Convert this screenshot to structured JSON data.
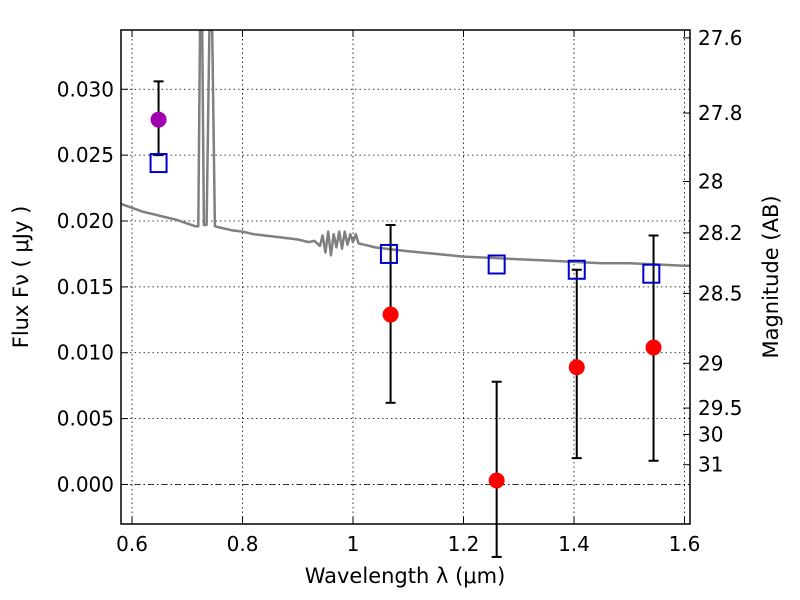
{
  "chart_data": {
    "type": "scatter",
    "xlabel": "Wavelength  λ (μm)",
    "ylabel": "Flux  Fν  ( μJy )",
    "y2label": "Magnitude (AB)",
    "xlim": [
      0.58,
      1.61
    ],
    "ylim": [
      -0.003,
      0.0345
    ],
    "grid": true,
    "x_ticks": [
      {
        "value": 0.6,
        "label": "0.6"
      },
      {
        "value": 0.8,
        "label": "0.8"
      },
      {
        "value": 1.0,
        "label": "1"
      },
      {
        "value": 1.2,
        "label": "1.2"
      },
      {
        "value": 1.4,
        "label": "1.4"
      },
      {
        "value": 1.6,
        "label": "1.6"
      }
    ],
    "y_ticks": [
      {
        "value": 0.0,
        "label": "0.000"
      },
      {
        "value": 0.005,
        "label": "0.005"
      },
      {
        "value": 0.01,
        "label": "0.010"
      },
      {
        "value": 0.015,
        "label": "0.015"
      },
      {
        "value": 0.02,
        "label": "0.020"
      },
      {
        "value": 0.025,
        "label": "0.025"
      },
      {
        "value": 0.03,
        "label": "0.030"
      }
    ],
    "y2_ticks": [
      {
        "flux": 0.0339,
        "label": "27.6"
      },
      {
        "flux": 0.0282,
        "label": "27.8"
      },
      {
        "flux": 0.023,
        "label": "28"
      },
      {
        "flux": 0.0191,
        "label": "28.2"
      },
      {
        "flux": 0.0145,
        "label": "28.5"
      },
      {
        "flux": 0.0092,
        "label": "29"
      },
      {
        "flux": 0.0058,
        "label": "29.5"
      },
      {
        "flux": 0.0038,
        "label": "30"
      },
      {
        "flux": 0.0015,
        "label": "31"
      }
    ],
    "zero_line": 0.0,
    "series": [
      {
        "type": "line",
        "color": "#808080",
        "x": [
          0.58,
          0.6,
          0.62,
          0.64,
          0.66,
          0.68,
          0.7,
          0.715,
          0.72,
          0.723,
          0.727,
          0.73,
          0.735,
          0.74,
          0.745,
          0.75,
          0.76,
          0.78,
          0.8,
          0.82,
          0.84,
          0.86,
          0.88,
          0.9,
          0.92,
          0.93,
          0.94,
          0.945,
          0.95,
          0.955,
          0.96,
          0.965,
          0.97,
          0.975,
          0.98,
          0.985,
          0.99,
          0.995,
          1.0,
          1.005,
          1.01,
          1.02,
          1.04,
          1.06,
          1.08,
          1.1,
          1.15,
          1.2,
          1.25,
          1.3,
          1.35,
          1.4,
          1.45,
          1.5,
          1.55,
          1.6,
          1.61
        ],
        "y": [
          0.0213,
          0.021,
          0.0207,
          0.0205,
          0.0203,
          0.0201,
          0.0198,
          0.0196,
          0.0196,
          0.0345,
          0.0345,
          0.0197,
          0.0197,
          0.0345,
          0.0345,
          0.0196,
          0.0195,
          0.0193,
          0.0192,
          0.019,
          0.0189,
          0.0188,
          0.0187,
          0.0186,
          0.0184,
          0.0185,
          0.0181,
          0.0189,
          0.0176,
          0.0192,
          0.0174,
          0.019,
          0.018,
          0.0192,
          0.0179,
          0.0192,
          0.0182,
          0.019,
          0.0184,
          0.019,
          0.0183,
          0.0182,
          0.018,
          0.0179,
          0.0178,
          0.0177,
          0.0175,
          0.0173,
          0.0172,
          0.0171,
          0.017,
          0.0169,
          0.0168,
          0.0168,
          0.0167,
          0.0166,
          0.0166
        ]
      },
      {
        "type": "scatter",
        "marker": "square-open",
        "color": "#0000cc",
        "x": [
          0.648,
          1.065,
          1.26,
          1.405,
          1.54
        ],
        "y": [
          0.0244,
          0.0175,
          0.0167,
          0.0163,
          0.016
        ]
      },
      {
        "type": "scatter",
        "marker": "circle",
        "color": "#a000b0",
        "x": [
          0.648
        ],
        "y": [
          0.0277
        ],
        "yerr_low": [
          0.025
        ],
        "yerr_high": [
          0.0306
        ]
      },
      {
        "type": "scatter",
        "marker": "circle",
        "color": "#ff0000",
        "x": [
          1.068,
          1.26,
          1.405,
          1.544
        ],
        "y": [
          0.0129,
          0.0003,
          0.0089,
          0.0104
        ],
        "yerr_low": [
          0.0062,
          -0.0055,
          0.002,
          0.0018
        ],
        "yerr_high": [
          0.0197,
          0.0078,
          0.0163,
          0.0189
        ]
      }
    ]
  }
}
